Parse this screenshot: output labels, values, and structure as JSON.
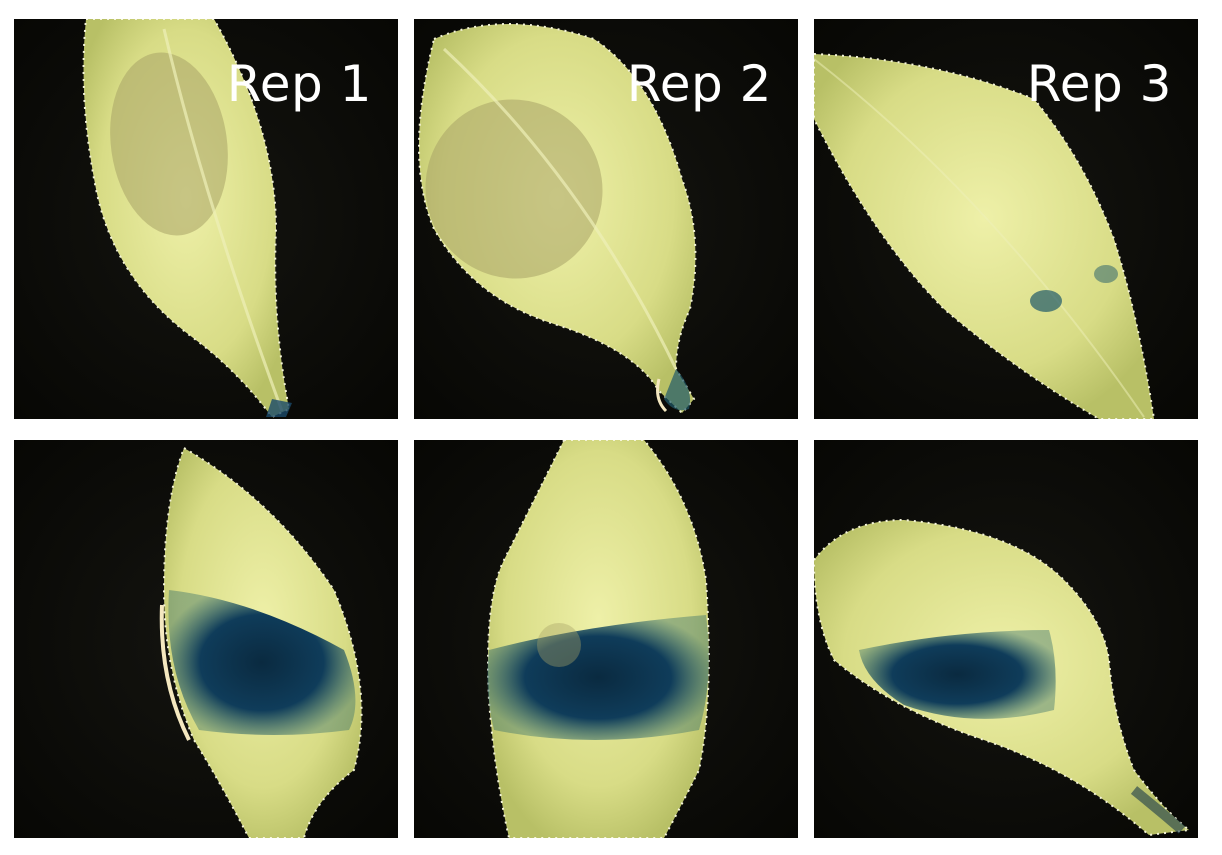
{
  "figure": {
    "columns": [
      {
        "label": "Rep 1"
      },
      {
        "label": "Rep 2"
      },
      {
        "label": "Rep 3"
      }
    ]
  },
  "colors": {
    "background": "#0a0a06",
    "leaf": "#d8dc86",
    "leaf_bright": "#eef0a8",
    "stain": "#0f3c5a",
    "edge": "#f4f4d8"
  },
  "panels": [
    {
      "row": 1,
      "col": 1,
      "staining": "faint-petiole"
    },
    {
      "row": 1,
      "col": 2,
      "staining": "faint-petiole"
    },
    {
      "row": 1,
      "col": 3,
      "staining": "faint-spots"
    },
    {
      "row": 2,
      "col": 1,
      "staining": "strong-band"
    },
    {
      "row": 2,
      "col": 2,
      "staining": "strong-band"
    },
    {
      "row": 2,
      "col": 3,
      "staining": "strong-band"
    }
  ]
}
